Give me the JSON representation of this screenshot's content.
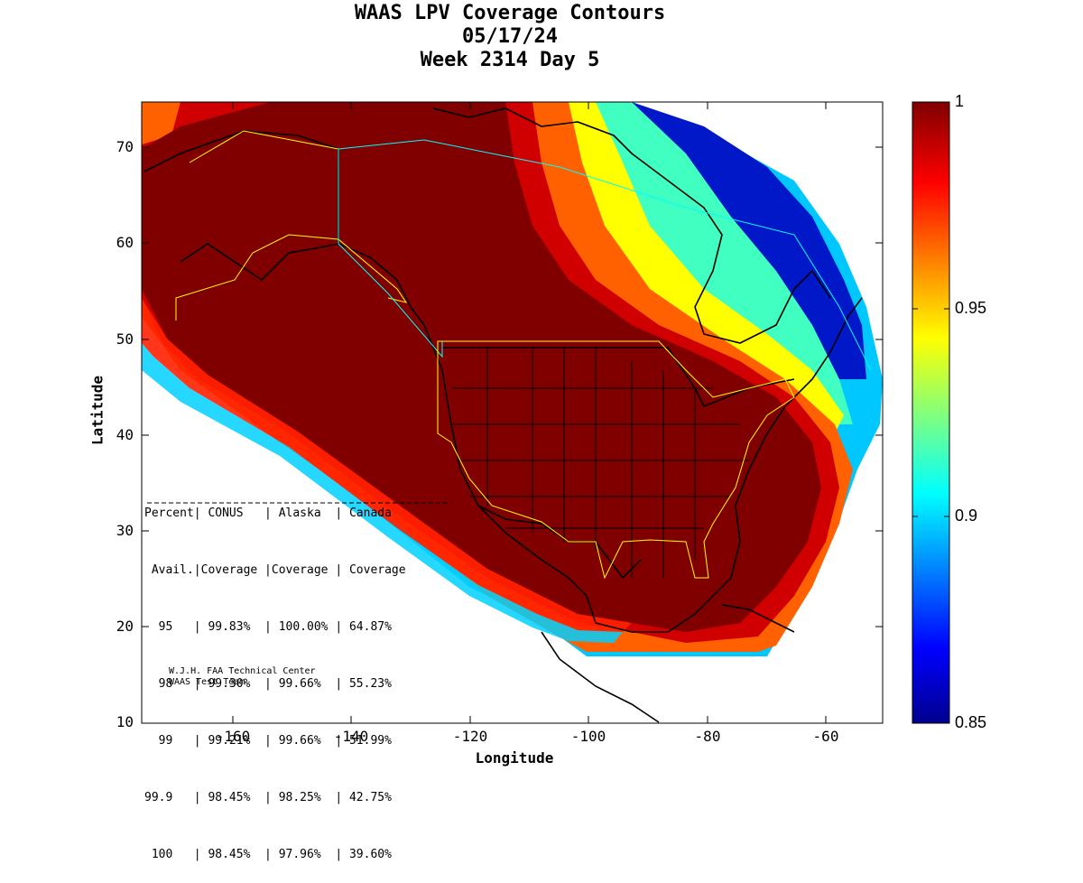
{
  "title": {
    "line1": "WAAS LPV Coverage Contours",
    "line2": "05/17/24",
    "line3": "Week 2314 Day 5"
  },
  "axes": {
    "xlabel": "Longitude",
    "ylabel": "Latitude",
    "xticks": [
      "-160",
      "-140",
      "-120",
      "-100",
      "-80",
      "-60"
    ],
    "yticks": [
      "70",
      "60",
      "50",
      "40",
      "30",
      "20",
      "10"
    ],
    "xlim": [
      -175,
      -50
    ],
    "ylim": [
      10,
      75
    ]
  },
  "colorbar": {
    "labels": [
      "1",
      "0.95",
      "0.9",
      "0.85"
    ],
    "range": [
      0.85,
      1
    ],
    "colormap": "jet"
  },
  "stats_table": {
    "header1": "Percent| CONUS   | Alaska  | Canada",
    "header2": " Avail.|Coverage |Coverage | Coverage",
    "rows": [
      "  95   | 99.83%  | 100.00% | 64.87%",
      "  98   | 99.30%  | 99.66%  | 55.23%",
      "  99   | 99.21%  | 99.66%  | 51.99%",
      "99.9   | 98.45%  | 98.25%  | 42.75%",
      " 100   | 98.45%  | 97.96%  | 39.60%"
    ]
  },
  "credit": {
    "line1": "W.J.H. FAA Technical Center",
    "line2": "WAAS Test Team"
  },
  "colors": {
    "max": "#800000",
    "red": "#ff0000",
    "orange": "#ff8000",
    "yellow": "#ffff00",
    "cyan": "#00ffff",
    "blue": "#0000ff",
    "min": "#00008f",
    "boundary_yellow": "#ffff00",
    "boundary_cyan": "#00ffff"
  }
}
